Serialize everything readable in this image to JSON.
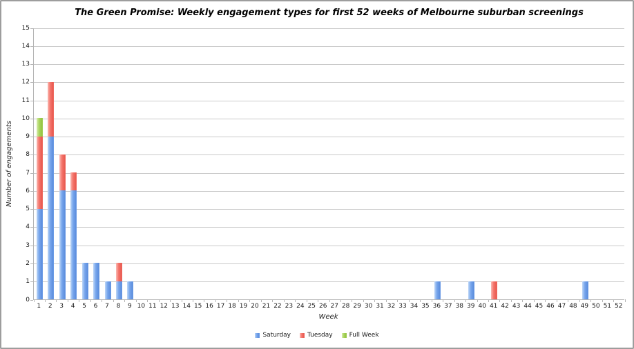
{
  "chart_data": {
    "type": "bar",
    "stacked": true,
    "title": "The Green Promise: Weekly engagement types for first 52 weeks of Melbourne suburban screenings",
    "xlabel": "Week",
    "ylabel": "Number of engagements",
    "ylim": [
      0,
      15
    ],
    "yticks": [
      0,
      1,
      2,
      3,
      4,
      5,
      6,
      7,
      8,
      9,
      10,
      11,
      12,
      13,
      14,
      15
    ],
    "grid": true,
    "legend_position": "bottom",
    "categories": [
      1,
      2,
      3,
      4,
      5,
      6,
      7,
      8,
      9,
      10,
      11,
      12,
      13,
      14,
      15,
      16,
      17,
      18,
      19,
      20,
      21,
      22,
      23,
      24,
      25,
      26,
      27,
      28,
      29,
      30,
      31,
      32,
      33,
      34,
      35,
      36,
      37,
      38,
      39,
      40,
      41,
      42,
      43,
      44,
      45,
      46,
      47,
      48,
      49,
      50,
      51,
      52
    ],
    "series": [
      {
        "name": "Saturday",
        "color": "#77A5EC",
        "color_light": "#BDD7F7",
        "color_dark": "#5C8EDD",
        "values": [
          5,
          9,
          6,
          6,
          2,
          2,
          1,
          1,
          1,
          0,
          0,
          0,
          0,
          0,
          0,
          0,
          0,
          0,
          0,
          0,
          0,
          0,
          0,
          0,
          0,
          0,
          0,
          0,
          0,
          0,
          0,
          0,
          0,
          0,
          0,
          1,
          0,
          0,
          1,
          0,
          0,
          0,
          0,
          0,
          0,
          0,
          0,
          0,
          1,
          0,
          0,
          0
        ]
      },
      {
        "name": "Tuesday",
        "color": "#F4746B",
        "color_light": "#FAB9B3",
        "color_dark": "#E85A50",
        "values": [
          4,
          3,
          2,
          1,
          0,
          0,
          0,
          1,
          0,
          0,
          0,
          0,
          0,
          0,
          0,
          0,
          0,
          0,
          0,
          0,
          0,
          0,
          0,
          0,
          0,
          0,
          0,
          0,
          0,
          0,
          0,
          0,
          0,
          0,
          0,
          0,
          0,
          0,
          0,
          0,
          1,
          0,
          0,
          0,
          0,
          0,
          0,
          0,
          0,
          0,
          0,
          0
        ]
      },
      {
        "name": "Full Week",
        "color": "#A9D55E",
        "color_light": "#D9EDB0",
        "color_dark": "#94C344",
        "values": [
          1,
          0,
          0,
          0,
          0,
          0,
          0,
          0,
          0,
          0,
          0,
          0,
          0,
          0,
          0,
          0,
          0,
          0,
          0,
          0,
          0,
          0,
          0,
          0,
          0,
          0,
          0,
          0,
          0,
          0,
          0,
          0,
          0,
          0,
          0,
          0,
          0,
          0,
          0,
          0,
          0,
          0,
          0,
          0,
          0,
          0,
          0,
          0,
          0,
          0,
          0,
          0
        ]
      }
    ],
    "colors": {
      "gridline": "#C9C9C9",
      "axis": "#B5B5B5",
      "text": "#1A1A1A"
    }
  }
}
